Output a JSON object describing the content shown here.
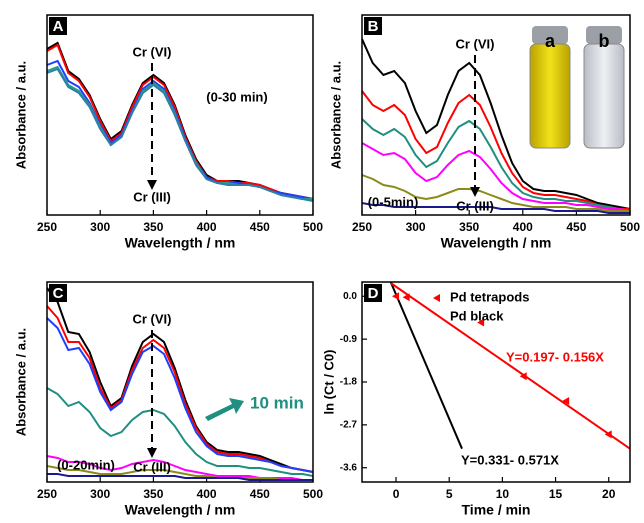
{
  "chart_data": [
    {
      "type": "line",
      "panel_label": "A",
      "x_label": "Wavelength / nm",
      "y_label": "Absorbance / a.u.",
      "x": [
        250,
        260,
        270,
        280,
        290,
        300,
        310,
        320,
        330,
        340,
        350,
        360,
        370,
        380,
        390,
        400,
        410,
        420,
        430,
        440,
        450,
        460,
        470,
        480,
        490,
        500
      ],
      "xlim": [
        250,
        500
      ],
      "xticks": [
        250,
        300,
        350,
        400,
        450,
        500
      ],
      "ylim": [
        0,
        1
      ],
      "series": [
        {
          "color": "#000000",
          "values": [
            0.83,
            0.86,
            0.72,
            0.68,
            0.6,
            0.48,
            0.38,
            0.42,
            0.55,
            0.66,
            0.7,
            0.66,
            0.55,
            0.4,
            0.28,
            0.2,
            0.17,
            0.17,
            0.17,
            0.16,
            0.15,
            0.13,
            0.11,
            0.1,
            0.09,
            0.08
          ]
        },
        {
          "color": "#ff0000",
          "values": [
            0.82,
            0.85,
            0.71,
            0.67,
            0.59,
            0.47,
            0.37,
            0.41,
            0.54,
            0.65,
            0.69,
            0.65,
            0.54,
            0.39,
            0.27,
            0.19,
            0.17,
            0.17,
            0.16,
            0.16,
            0.15,
            0.13,
            0.11,
            0.1,
            0.09,
            0.08
          ]
        },
        {
          "color": "#1f3fff",
          "values": [
            0.75,
            0.77,
            0.67,
            0.64,
            0.56,
            0.45,
            0.36,
            0.4,
            0.52,
            0.63,
            0.67,
            0.63,
            0.52,
            0.38,
            0.26,
            0.19,
            0.16,
            0.16,
            0.16,
            0.15,
            0.14,
            0.12,
            0.11,
            0.1,
            0.09,
            0.08
          ]
        },
        {
          "color": "#2a9a8a",
          "values": [
            0.72,
            0.74,
            0.65,
            0.62,
            0.55,
            0.44,
            0.35,
            0.39,
            0.51,
            0.62,
            0.66,
            0.62,
            0.51,
            0.37,
            0.26,
            0.18,
            0.16,
            0.16,
            0.15,
            0.15,
            0.14,
            0.12,
            0.1,
            0.09,
            0.08,
            0.08
          ]
        },
        {
          "color": "#2e7fa8",
          "values": [
            0.71,
            0.73,
            0.64,
            0.61,
            0.54,
            0.43,
            0.35,
            0.39,
            0.51,
            0.61,
            0.65,
            0.61,
            0.5,
            0.37,
            0.25,
            0.18,
            0.16,
            0.15,
            0.15,
            0.15,
            0.14,
            0.12,
            0.1,
            0.09,
            0.08,
            0.07
          ]
        }
      ],
      "annotations": [
        {
          "text": "Cr (VI)",
          "color": "#000000"
        },
        {
          "text": "Cr (III)",
          "color": "#000000"
        },
        {
          "text": "(0-30 min)",
          "color": "#000000"
        }
      ]
    },
    {
      "type": "line",
      "panel_label": "B",
      "x_label": "Wavelength / nm",
      "y_label": "Absorbance / a.u.",
      "x": [
        250,
        260,
        270,
        280,
        290,
        300,
        310,
        320,
        330,
        340,
        350,
        360,
        370,
        380,
        390,
        400,
        410,
        420,
        430,
        440,
        450,
        460,
        470,
        480,
        490,
        500
      ],
      "xlim": [
        250,
        500
      ],
      "xticks": [
        250,
        300,
        350,
        400,
        450,
        500
      ],
      "ylim": [
        0,
        1
      ],
      "series": [
        {
          "color": "#000000",
          "values": [
            0.88,
            0.76,
            0.7,
            0.72,
            0.66,
            0.52,
            0.41,
            0.45,
            0.6,
            0.72,
            0.76,
            0.7,
            0.56,
            0.4,
            0.26,
            0.17,
            0.13,
            0.12,
            0.12,
            0.11,
            0.1,
            0.08,
            0.06,
            0.05,
            0.04,
            0.03
          ]
        },
        {
          "color": "#ff0000",
          "values": [
            0.62,
            0.55,
            0.52,
            0.55,
            0.5,
            0.38,
            0.31,
            0.34,
            0.46,
            0.56,
            0.6,
            0.55,
            0.44,
            0.31,
            0.21,
            0.14,
            0.11,
            0.1,
            0.1,
            0.09,
            0.08,
            0.07,
            0.05,
            0.04,
            0.03,
            0.03
          ]
        },
        {
          "color": "#1f8f80",
          "values": [
            0.48,
            0.43,
            0.4,
            0.43,
            0.39,
            0.3,
            0.24,
            0.27,
            0.36,
            0.44,
            0.47,
            0.43,
            0.34,
            0.24,
            0.16,
            0.11,
            0.09,
            0.08,
            0.08,
            0.07,
            0.07,
            0.06,
            0.05,
            0.04,
            0.03,
            0.02
          ]
        },
        {
          "color": "#ff00ff",
          "values": [
            0.36,
            0.33,
            0.3,
            0.31,
            0.28,
            0.21,
            0.17,
            0.19,
            0.25,
            0.3,
            0.32,
            0.29,
            0.23,
            0.16,
            0.11,
            0.08,
            0.07,
            0.06,
            0.06,
            0.06,
            0.05,
            0.05,
            0.04,
            0.03,
            0.03,
            0.02
          ]
        },
        {
          "color": "#8b8b1a",
          "values": [
            0.2,
            0.18,
            0.15,
            0.14,
            0.12,
            0.09,
            0.08,
            0.09,
            0.11,
            0.13,
            0.13,
            0.12,
            0.1,
            0.08,
            0.06,
            0.05,
            0.04,
            0.04,
            0.04,
            0.04,
            0.03,
            0.03,
            0.03,
            0.02,
            0.02,
            0.02
          ]
        },
        {
          "color": "#1a1a8c",
          "values": [
            0.06,
            0.05,
            0.05,
            0.04,
            0.04,
            0.04,
            0.04,
            0.04,
            0.04,
            0.04,
            0.04,
            0.04,
            0.04,
            0.03,
            0.03,
            0.03,
            0.03,
            0.03,
            0.02,
            0.02,
            0.02,
            0.02,
            0.02,
            0.01,
            0.01,
            0.01
          ]
        }
      ],
      "annotations": [
        {
          "text": "Cr (VI)",
          "color": "#000000"
        },
        {
          "text": "Cr (III)",
          "color": "#000000"
        },
        {
          "text": "(0-5min)",
          "color": "#000000"
        },
        {
          "text": "a",
          "color": "#000000"
        },
        {
          "text": "b",
          "color": "#000000"
        }
      ]
    },
    {
      "type": "line",
      "panel_label": "C",
      "x_label": "Wavelength / nm",
      "y_label": "Absorbance / a.u.",
      "x": [
        250,
        260,
        270,
        280,
        290,
        300,
        310,
        320,
        330,
        340,
        350,
        360,
        370,
        380,
        390,
        400,
        410,
        420,
        430,
        440,
        450,
        460,
        470,
        480,
        490,
        500
      ],
      "xlim": [
        250,
        500
      ],
      "xticks": [
        250,
        300,
        350,
        400,
        450,
        500
      ],
      "ylim": [
        0,
        1
      ],
      "series": [
        {
          "color": "#000000",
          "values": [
            0.97,
            0.9,
            0.75,
            0.74,
            0.65,
            0.5,
            0.38,
            0.42,
            0.58,
            0.7,
            0.74,
            0.7,
            0.57,
            0.41,
            0.28,
            0.2,
            0.16,
            0.15,
            0.15,
            0.14,
            0.13,
            0.11,
            0.09,
            0.07,
            0.06,
            0.05
          ]
        },
        {
          "color": "#ff0000",
          "values": [
            0.88,
            0.82,
            0.7,
            0.7,
            0.62,
            0.47,
            0.37,
            0.41,
            0.56,
            0.67,
            0.71,
            0.67,
            0.55,
            0.39,
            0.27,
            0.19,
            0.15,
            0.14,
            0.14,
            0.13,
            0.12,
            0.1,
            0.08,
            0.07,
            0.06,
            0.05
          ]
        },
        {
          "color": "#1f3fff",
          "values": [
            0.82,
            0.77,
            0.66,
            0.67,
            0.59,
            0.45,
            0.36,
            0.4,
            0.54,
            0.65,
            0.68,
            0.64,
            0.52,
            0.37,
            0.25,
            0.18,
            0.14,
            0.13,
            0.13,
            0.12,
            0.11,
            0.1,
            0.08,
            0.07,
            0.06,
            0.05
          ]
        },
        {
          "color": "#1f8f80",
          "values": [
            0.47,
            0.44,
            0.38,
            0.4,
            0.35,
            0.27,
            0.23,
            0.25,
            0.31,
            0.35,
            0.36,
            0.34,
            0.28,
            0.2,
            0.14,
            0.1,
            0.08,
            0.08,
            0.08,
            0.07,
            0.07,
            0.06,
            0.05,
            0.04,
            0.04,
            0.03
          ]
        },
        {
          "color": "#ff00ff",
          "values": [
            0.13,
            0.12,
            0.1,
            0.1,
            0.09,
            0.07,
            0.06,
            0.07,
            0.09,
            0.1,
            0.11,
            0.1,
            0.08,
            0.06,
            0.05,
            0.04,
            0.03,
            0.03,
            0.03,
            0.03,
            0.02,
            0.02,
            0.02,
            0.02,
            0.01,
            0.01
          ]
        },
        {
          "color": "#8b8b1a",
          "values": [
            0.08,
            0.07,
            0.06,
            0.06,
            0.05,
            0.04,
            0.04,
            0.04,
            0.05,
            0.06,
            0.06,
            0.06,
            0.05,
            0.04,
            0.03,
            0.03,
            0.02,
            0.02,
            0.02,
            0.02,
            0.02,
            0.02,
            0.01,
            0.01,
            0.01,
            0.01
          ]
        },
        {
          "color": "#1a1a8c",
          "values": [
            0.04,
            0.04,
            0.03,
            0.03,
            0.03,
            0.03,
            0.03,
            0.03,
            0.03,
            0.03,
            0.03,
            0.03,
            0.03,
            0.02,
            0.02,
            0.02,
            0.02,
            0.02,
            0.02,
            0.01,
            0.01,
            0.01,
            0.01,
            0.01,
            0.01,
            0.01
          ]
        }
      ],
      "annotations": [
        {
          "text": "Cr (VI)",
          "color": "#000000"
        },
        {
          "text": "Cr (III)",
          "color": "#000000"
        },
        {
          "text": "(0-20min)",
          "color": "#000000"
        },
        {
          "text": "10 min",
          "color": "#1f8f80"
        }
      ]
    },
    {
      "type": "scatter",
      "panel_label": "D",
      "x_label": "Time / min",
      "y_label": "ln (Ct / C0)",
      "xlim": [
        -3.2,
        22
      ],
      "xticks": [
        0,
        5,
        10,
        15,
        20
      ],
      "ylim": [
        -3.9,
        0.3
      ],
      "yticks": [
        {
          "value": 0,
          "label": "0.0"
        },
        -0.9,
        -1.8,
        -2.7,
        -3.6
      ],
      "series": [
        {
          "name": "Pd tetrapods",
          "color": "#000000",
          "x": [
            -0.5,
            6.2
          ],
          "values": [
            0.3,
            -3.2
          ]
        },
        {
          "name": "Pd black",
          "color": "#ff0000",
          "x": [
            0,
            1,
            8,
            12,
            16,
            20
          ],
          "values": [
            0,
            -0.02,
            -0.55,
            -1.68,
            -2.2,
            -2.9
          ],
          "fit": {
            "x": [
              -0.5,
              22
            ],
            "values": [
              0.28,
              -3.2
            ]
          }
        }
      ],
      "annotations": [
        {
          "text": "Y=0.197- 0.156X",
          "color": "#ff0000"
        },
        {
          "text": "Y=0.331- 0.571X",
          "color": "#000000"
        }
      ]
    }
  ]
}
